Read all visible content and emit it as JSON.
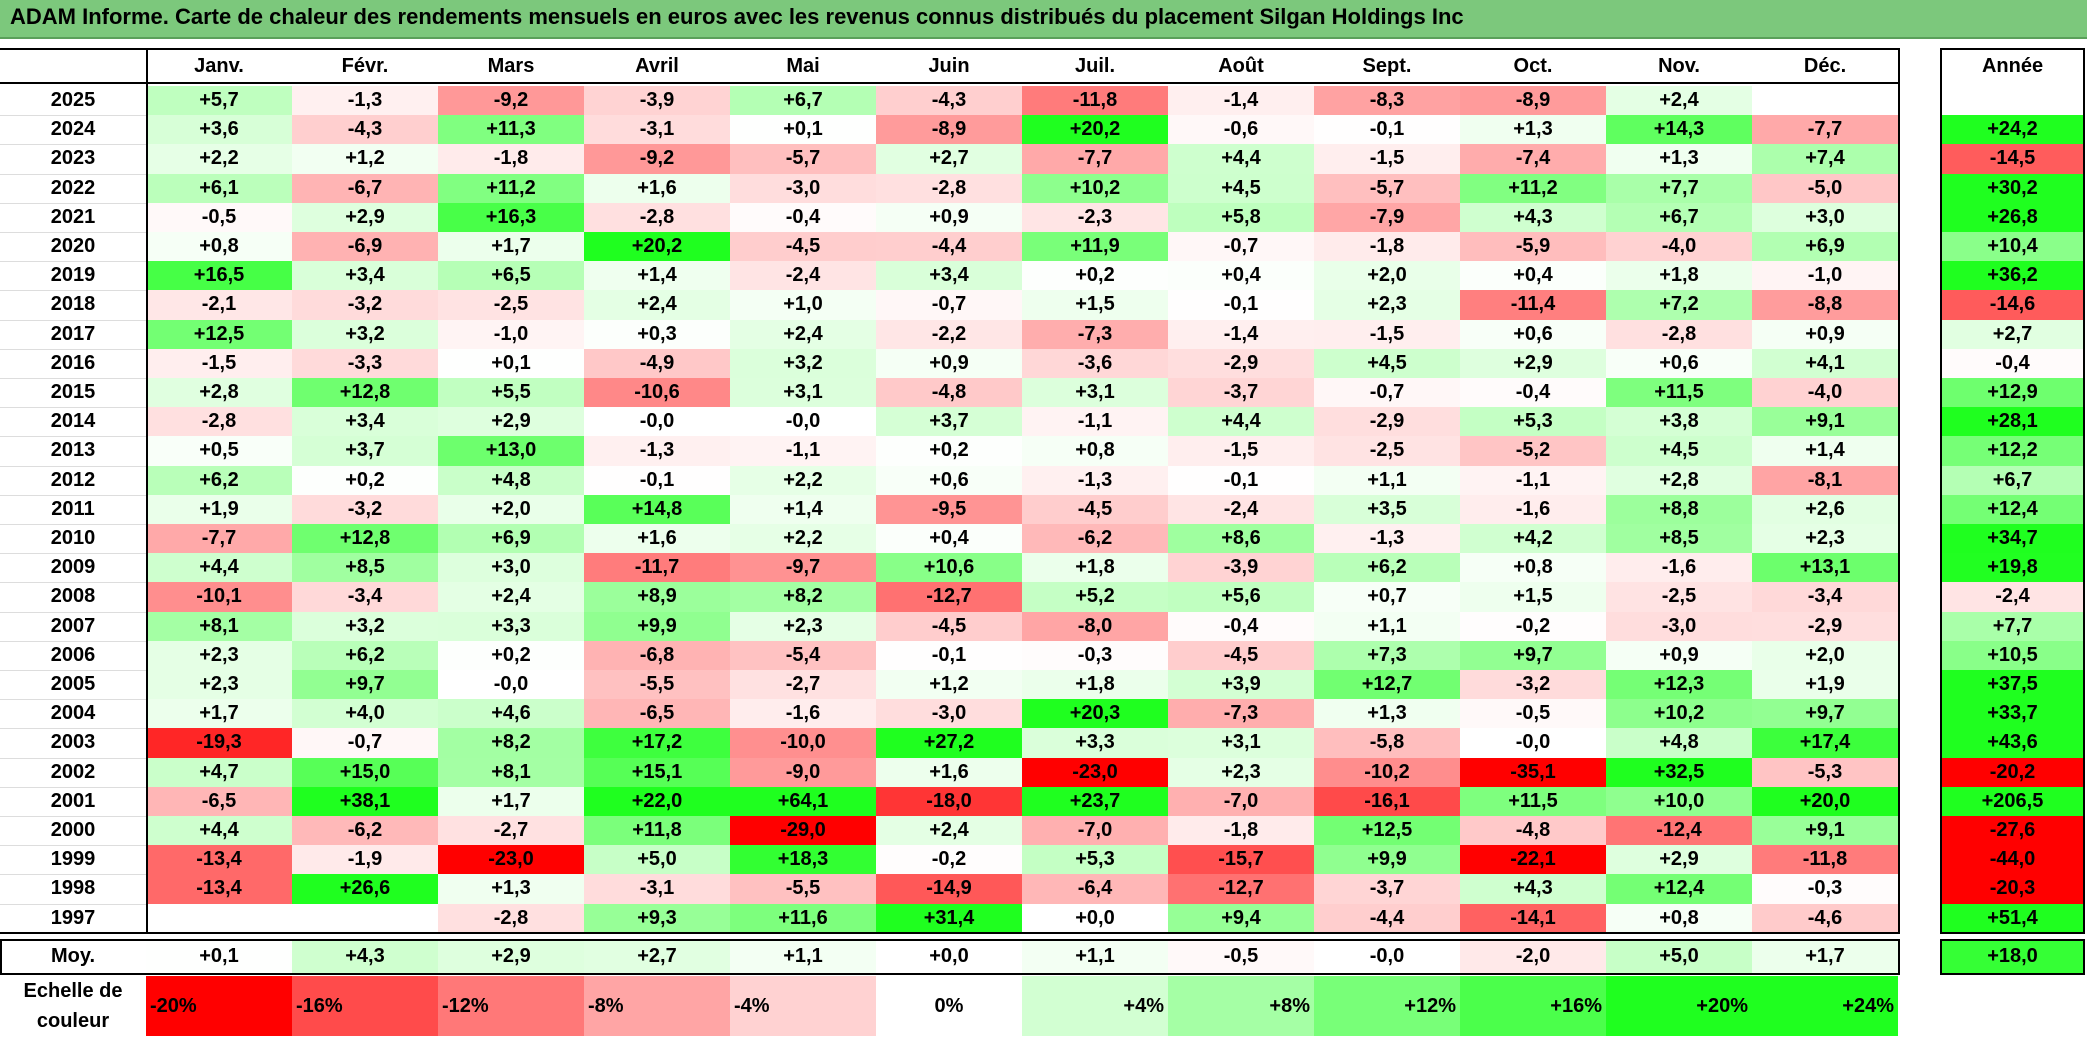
{
  "title": "ADAM Informe. Carte de chaleur des rendements mensuels en euros avec les revenus connus distribués du placement Silgan Holdings Inc",
  "chart_data": {
    "type": "heatmap",
    "columns": [
      "Janv.",
      "Févr.",
      "Mars",
      "Avril",
      "Mai",
      "Juin",
      "Juil.",
      "Août",
      "Sept.",
      "Oct.",
      "Nov.",
      "Déc."
    ],
    "year_header": "Année",
    "rows": [
      {
        "year": "2025",
        "values": [
          "+5,7",
          "-1,3",
          "-9,2",
          "-3,9",
          "+6,7",
          "-4,3",
          "-11,8",
          "-1,4",
          "-8,3",
          "-8,9",
          "+2,4",
          ""
        ],
        "annual": ""
      },
      {
        "year": "2024",
        "values": [
          "+3,6",
          "-4,3",
          "+11,3",
          "-3,1",
          "+0,1",
          "-8,9",
          "+20,2",
          "-0,6",
          "-0,1",
          "+1,3",
          "+14,3",
          "-7,7"
        ],
        "annual": "+24,2"
      },
      {
        "year": "2023",
        "values": [
          "+2,2",
          "+1,2",
          "-1,8",
          "-9,2",
          "-5,7",
          "+2,7",
          "-7,7",
          "+4,4",
          "-1,5",
          "-7,4",
          "+1,3",
          "+7,4"
        ],
        "annual": "-14,5"
      },
      {
        "year": "2022",
        "values": [
          "+6,1",
          "-6,7",
          "+11,2",
          "+1,6",
          "-3,0",
          "-2,8",
          "+10,2",
          "+4,5",
          "-5,7",
          "+11,2",
          "+7,7",
          "-5,0"
        ],
        "annual": "+30,2"
      },
      {
        "year": "2021",
        "values": [
          "-0,5",
          "+2,9",
          "+16,3",
          "-2,8",
          "-0,4",
          "+0,9",
          "-2,3",
          "+5,8",
          "-7,9",
          "+4,3",
          "+6,7",
          "+3,0"
        ],
        "annual": "+26,8"
      },
      {
        "year": "2020",
        "values": [
          "+0,8",
          "-6,9",
          "+1,7",
          "+20,2",
          "-4,5",
          "-4,4",
          "+11,9",
          "-0,7",
          "-1,8",
          "-5,9",
          "-4,0",
          "+6,9"
        ],
        "annual": "+10,4"
      },
      {
        "year": "2019",
        "values": [
          "+16,5",
          "+3,4",
          "+6,5",
          "+1,4",
          "-2,4",
          "+3,4",
          "+0,2",
          "+0,4",
          "+2,0",
          "+0,4",
          "+1,8",
          "-1,0"
        ],
        "annual": "+36,2"
      },
      {
        "year": "2018",
        "values": [
          "-2,1",
          "-3,2",
          "-2,5",
          "+2,4",
          "+1,0",
          "-0,7",
          "+1,5",
          "-0,1",
          "+2,3",
          "-11,4",
          "+7,2",
          "-8,8"
        ],
        "annual": "-14,6"
      },
      {
        "year": "2017",
        "values": [
          "+12,5",
          "+3,2",
          "-1,0",
          "+0,3",
          "+2,4",
          "-2,2",
          "-7,3",
          "-1,4",
          "-1,5",
          "+0,6",
          "-2,8",
          "+0,9"
        ],
        "annual": "+2,7"
      },
      {
        "year": "2016",
        "values": [
          "-1,5",
          "-3,3",
          "+0,1",
          "-4,9",
          "+3,2",
          "+0,9",
          "-3,6",
          "-2,9",
          "+4,5",
          "+2,9",
          "+0,6",
          "+4,1"
        ],
        "annual": "-0,4"
      },
      {
        "year": "2015",
        "values": [
          "+2,8",
          "+12,8",
          "+5,5",
          "-10,6",
          "+3,1",
          "-4,8",
          "+3,1",
          "-3,7",
          "-0,7",
          "-0,4",
          "+11,5",
          "-4,0"
        ],
        "annual": "+12,9"
      },
      {
        "year": "2014",
        "values": [
          "-2,8",
          "+3,4",
          "+2,9",
          "-0,0",
          "-0,0",
          "+3,7",
          "-1,1",
          "+4,4",
          "-2,9",
          "+5,3",
          "+3,8",
          "+9,1"
        ],
        "annual": "+28,1"
      },
      {
        "year": "2013",
        "values": [
          "+0,5",
          "+3,7",
          "+13,0",
          "-1,3",
          "-1,1",
          "+0,2",
          "+0,8",
          "-1,5",
          "-2,5",
          "-5,2",
          "+4,5",
          "+1,4"
        ],
        "annual": "+12,2"
      },
      {
        "year": "2012",
        "values": [
          "+6,2",
          "+0,2",
          "+4,8",
          "-0,1",
          "+2,2",
          "+0,6",
          "-1,3",
          "-0,1",
          "+1,1",
          "-1,1",
          "+2,8",
          "-8,1"
        ],
        "annual": "+6,7"
      },
      {
        "year": "2011",
        "values": [
          "+1,9",
          "-3,2",
          "+2,0",
          "+14,8",
          "+1,4",
          "-9,5",
          "-4,5",
          "-2,4",
          "+3,5",
          "-1,6",
          "+8,8",
          "+2,6"
        ],
        "annual": "+12,4"
      },
      {
        "year": "2010",
        "values": [
          "-7,7",
          "+12,8",
          "+6,9",
          "+1,6",
          "+2,2",
          "+0,4",
          "-6,2",
          "+8,6",
          "-1,3",
          "+4,2",
          "+8,5",
          "+2,3"
        ],
        "annual": "+34,7"
      },
      {
        "year": "2009",
        "values": [
          "+4,4",
          "+8,5",
          "+3,0",
          "-11,7",
          "-9,7",
          "+10,6",
          "+1,8",
          "-3,9",
          "+6,2",
          "+0,8",
          "-1,6",
          "+13,1"
        ],
        "annual": "+19,8"
      },
      {
        "year": "2008",
        "values": [
          "-10,1",
          "-3,4",
          "+2,4",
          "+8,9",
          "+8,2",
          "-12,7",
          "+5,2",
          "+5,6",
          "+0,7",
          "+1,5",
          "-2,5",
          "-3,4"
        ],
        "annual": "-2,4"
      },
      {
        "year": "2007",
        "values": [
          "+8,1",
          "+3,2",
          "+3,3",
          "+9,9",
          "+2,3",
          "-4,5",
          "-8,0",
          "-0,4",
          "+1,1",
          "-0,2",
          "-3,0",
          "-2,9"
        ],
        "annual": "+7,7"
      },
      {
        "year": "2006",
        "values": [
          "+2,3",
          "+6,2",
          "+0,2",
          "-6,8",
          "-5,4",
          "-0,1",
          "-0,3",
          "-4,5",
          "+7,3",
          "+9,7",
          "+0,9",
          "+2,0"
        ],
        "annual": "+10,5"
      },
      {
        "year": "2005",
        "values": [
          "+2,3",
          "+9,7",
          "-0,0",
          "-5,5",
          "-2,7",
          "+1,2",
          "+1,8",
          "+3,9",
          "+12,7",
          "-3,2",
          "+12,3",
          "+1,9"
        ],
        "annual": "+37,5"
      },
      {
        "year": "2004",
        "values": [
          "+1,7",
          "+4,0",
          "+4,6",
          "-6,5",
          "-1,6",
          "-3,0",
          "+20,3",
          "-7,3",
          "+1,3",
          "-0,5",
          "+10,2",
          "+9,7"
        ],
        "annual": "+33,7"
      },
      {
        "year": "2003",
        "values": [
          "-19,3",
          "-0,7",
          "+8,2",
          "+17,2",
          "-10,0",
          "+27,2",
          "+3,3",
          "+3,1",
          "-5,8",
          "-0,0",
          "+4,8",
          "+17,4"
        ],
        "annual": "+43,6"
      },
      {
        "year": "2002",
        "values": [
          "+4,7",
          "+15,0",
          "+8,1",
          "+15,1",
          "-9,0",
          "+1,6",
          "-23,0",
          "+2,3",
          "-10,2",
          "-35,1",
          "+32,5",
          "-5,3"
        ],
        "annual": "-20,2"
      },
      {
        "year": "2001",
        "values": [
          "-6,5",
          "+38,1",
          "+1,7",
          "+22,0",
          "+64,1",
          "-18,0",
          "+23,7",
          "-7,0",
          "-16,1",
          "+11,5",
          "+10,0",
          "+20,0"
        ],
        "annual": "+206,5"
      },
      {
        "year": "2000",
        "values": [
          "+4,4",
          "-6,2",
          "-2,7",
          "+11,8",
          "-29,0",
          "+2,4",
          "-7,0",
          "-1,8",
          "+12,5",
          "-4,8",
          "-12,4",
          "+9,1"
        ],
        "annual": "-27,6"
      },
      {
        "year": "1999",
        "values": [
          "-13,4",
          "-1,9",
          "-23,0",
          "+5,0",
          "+18,3",
          "-0,2",
          "+5,3",
          "-15,7",
          "+9,9",
          "-22,1",
          "+2,9",
          "-11,8"
        ],
        "annual": "-44,0"
      },
      {
        "year": "1998",
        "values": [
          "-13,4",
          "+26,6",
          "+1,3",
          "-3,1",
          "-5,5",
          "-14,9",
          "-6,4",
          "-12,7",
          "-3,7",
          "+4,3",
          "+12,4",
          "-0,3"
        ],
        "annual": "-20,3"
      },
      {
        "year": "1997",
        "values": [
          "",
          "",
          "-2,8",
          "+9,3",
          "+11,6",
          "+31,4",
          "+0,0",
          "+9,4",
          "-4,4",
          "-14,1",
          "+0,8",
          "-4,6"
        ],
        "annual": "+51,4"
      }
    ],
    "average": {
      "label": "Moy.",
      "values": [
        "+0,1",
        "+4,3",
        "+2,9",
        "+2,7",
        "+1,1",
        "+0,0",
        "+1,1",
        "-0,5",
        "-0,0",
        "-2,0",
        "+5,0",
        "+1,7"
      ],
      "annual": "+18,0"
    },
    "scale": {
      "label": "Echelle de couleur",
      "stops": [
        "-20%",
        "-16%",
        "-12%",
        "-8%",
        "-4%",
        "0%",
        "+4%",
        "+8%",
        "+12%",
        "+16%",
        "+20%",
        "+24%"
      ]
    },
    "colors": {
      "negative": "#ff0000",
      "neutral": "#ffffff",
      "positive": "#00ff00",
      "title_bg": "#7cc87c"
    }
  }
}
